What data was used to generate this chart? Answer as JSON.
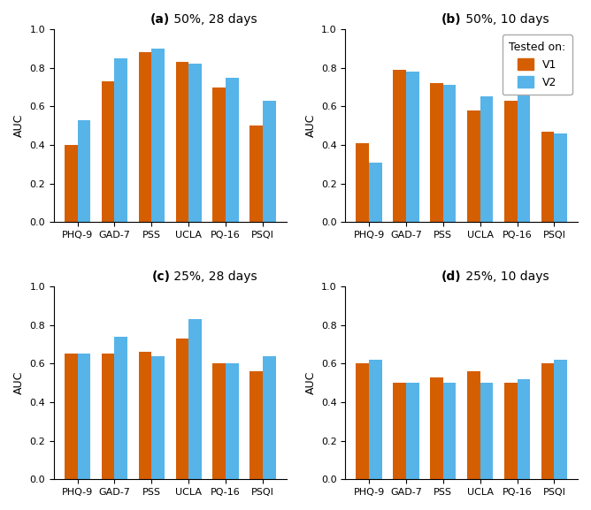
{
  "subplots": [
    {
      "title_bold": "(a)",
      "title_rest": " 50%, 28 days",
      "categories": [
        "PHQ-9",
        "GAD-7",
        "PSS",
        "UCLA",
        "PQ-16",
        "PSQI"
      ],
      "v1": [
        0.4,
        0.73,
        0.88,
        0.83,
        0.7,
        0.5
      ],
      "v2": [
        0.53,
        0.85,
        0.9,
        0.82,
        0.75,
        0.63
      ]
    },
    {
      "title_bold": "(b)",
      "title_rest": " 50%, 10 days",
      "categories": [
        "PHQ-9",
        "GAD-7",
        "PSS",
        "UCLA",
        "PQ-16",
        "PSQI"
      ],
      "v1": [
        0.41,
        0.79,
        0.72,
        0.58,
        0.63,
        0.47
      ],
      "v2": [
        0.31,
        0.78,
        0.71,
        0.65,
        0.66,
        0.46
      ]
    },
    {
      "title_bold": "(c)",
      "title_rest": " 25%, 28 days",
      "categories": [
        "PHQ-9",
        "GAD-7",
        "PSS",
        "UCLA",
        "PQ-16",
        "PSQI"
      ],
      "v1": [
        0.65,
        0.65,
        0.66,
        0.73,
        0.6,
        0.56
      ],
      "v2": [
        0.65,
        0.74,
        0.64,
        0.83,
        0.6,
        0.64
      ]
    },
    {
      "title_bold": "(d)",
      "title_rest": " 25%, 10 days",
      "categories": [
        "PHQ-9",
        "GAD-7",
        "PSS",
        "UCLA",
        "PQ-16",
        "PSQI"
      ],
      "v1": [
        0.6,
        0.5,
        0.53,
        0.56,
        0.5,
        0.6
      ],
      "v2": [
        0.62,
        0.5,
        0.5,
        0.5,
        0.52,
        0.62
      ]
    }
  ],
  "color_v1": "#D55E00",
  "color_v2": "#56B4E9",
  "ylabel": "AUC",
  "ylim": [
    0.0,
    1.0
  ],
  "yticks": [
    0.0,
    0.2,
    0.4,
    0.6,
    0.8,
    1.0
  ],
  "legend_title": "Tested on:",
  "legend_labels": [
    "V1",
    "V2"
  ],
  "bar_width": 0.35,
  "figsize": [
    6.68,
    5.77
  ],
  "dpi": 100
}
